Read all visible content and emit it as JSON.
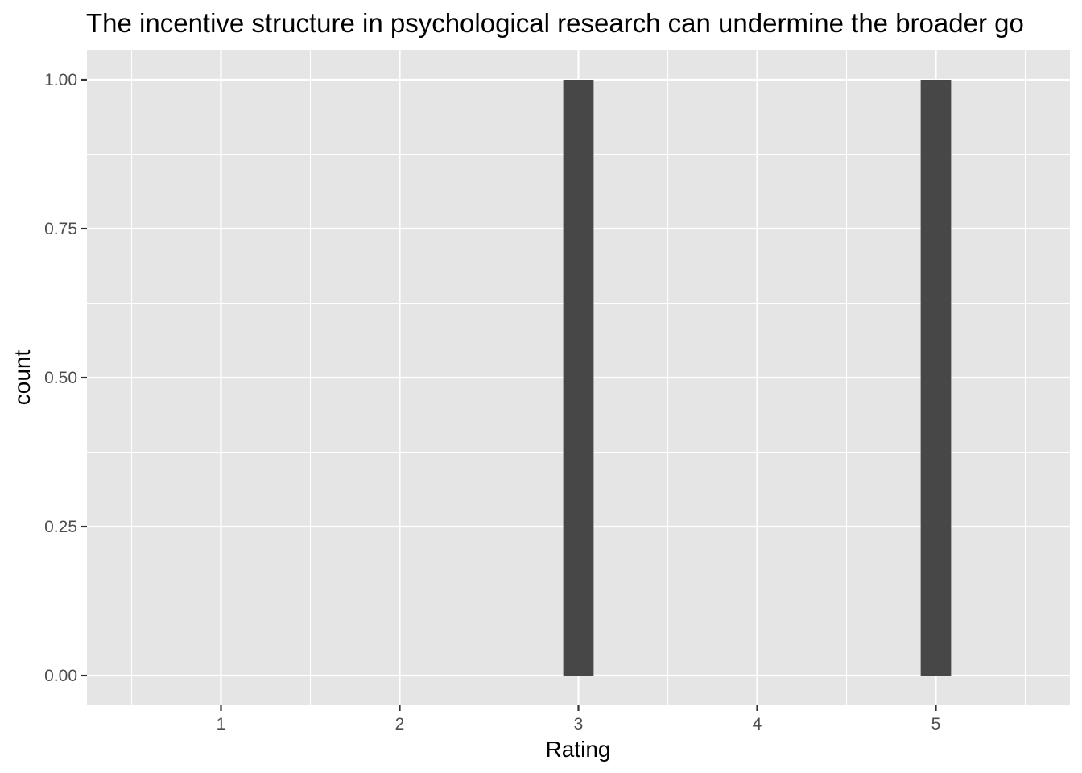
{
  "chart_data": {
    "type": "bar",
    "title": "The incentive structure in psychological research can undermine the broader go",
    "xlabel": "Rating",
    "ylabel": "count",
    "x_ticks": [
      1,
      2,
      3,
      4,
      5
    ],
    "y_ticks": [
      "0.00",
      "0.25",
      "0.50",
      "0.75",
      "1.00"
    ],
    "xlim": [
      0.25,
      5.75
    ],
    "ylim": [
      -0.05,
      1.05
    ],
    "grid": true,
    "bar_width": 0.17,
    "bars": [
      {
        "x": 3,
        "count": 1
      },
      {
        "x": 5,
        "count": 1
      }
    ],
    "colors": {
      "panel_background": "#e5e5e5",
      "grid": "#ffffff",
      "bar_fill": "#474747",
      "tick_label": "#4d4d4d",
      "tick_mark": "#333333",
      "text": "#000000"
    }
  }
}
